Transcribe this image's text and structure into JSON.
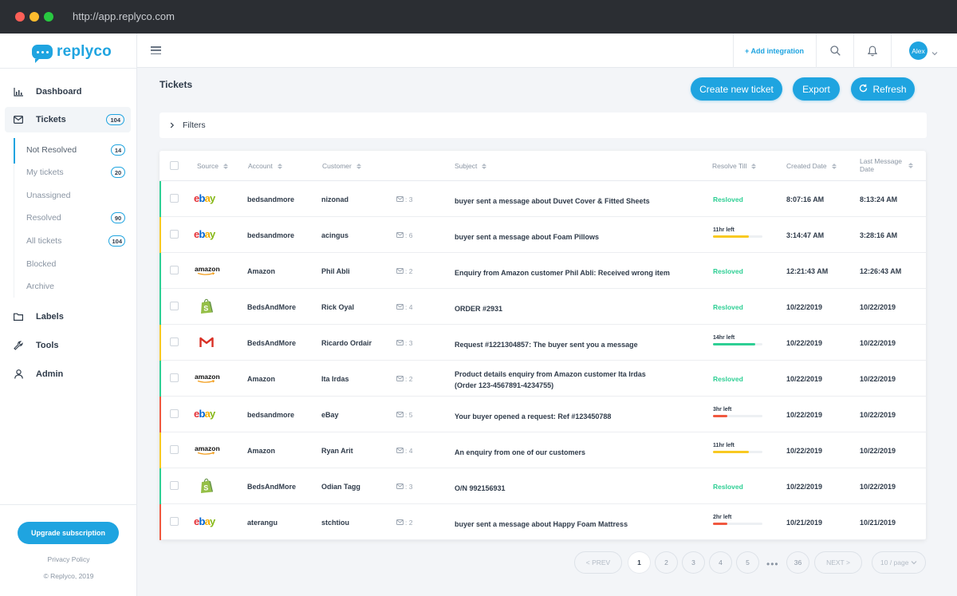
{
  "browser": {
    "url": "http://app.replyco.com"
  },
  "brand": {
    "name": "replyco",
    "color": "#1fa4e0"
  },
  "sidebar": {
    "items": [
      {
        "label": "Dashboard",
        "icon": "bar-chart-icon"
      },
      {
        "label": "Tickets",
        "icon": "envelope-icon",
        "badge": "104"
      },
      {
        "label": "Labels",
        "icon": "folder-icon"
      },
      {
        "label": "Tools",
        "icon": "wrench-icon"
      },
      {
        "label": "Admin",
        "icon": "user-icon"
      }
    ],
    "ticket_subitems": [
      {
        "label": "Not Resolved",
        "badge": "14"
      },
      {
        "label": "My tickets",
        "badge": "20"
      },
      {
        "label": "Unassigned"
      },
      {
        "label": "Resolved",
        "badge": "90"
      },
      {
        "label": "All tickets",
        "badge": "104"
      },
      {
        "label": "Blocked"
      },
      {
        "label": "Archive"
      }
    ],
    "upgrade_label": "Upgrade subscription",
    "privacy_label": "Privacy Policy",
    "copyright": "© Replyco, 2019"
  },
  "topbar": {
    "add_integration": "+ Add integration",
    "user_initials": "Alex"
  },
  "page": {
    "title": "Tickets",
    "create_label": "Create new ticket",
    "export_label": "Export",
    "refresh_label": "Refresh",
    "filters_label": "Filters"
  },
  "table": {
    "columns": {
      "source": "Source",
      "account": "Account",
      "customer": "Customer",
      "subject": "Subject",
      "resolve_till": "Resolve Till",
      "created_date": "Created Date",
      "last_message_1": "Last Message",
      "last_message_2": "Date"
    },
    "rows": [
      {
        "source": "ebay",
        "account": "bedsandmore",
        "customer": "nizonad",
        "messages": ": 3",
        "subject": "buyer sent a message about Duvet Cover & Fitted Sheets",
        "resolve": "Resloved",
        "created": "8:07:16 AM",
        "last": "8:13:24 AM",
        "stripe": "#2ecf94"
      },
      {
        "source": "ebay",
        "account": "bedsandmore",
        "customer": "acingus",
        "messages": ": 6",
        "subject": "buyer sent a message about Foam Pillows",
        "time_left": "11hr left",
        "progress": 0.73,
        "bar_color": "#f8c921",
        "created": "3:14:47 AM",
        "last": "3:28:16 AM",
        "stripe": "#f8c921"
      },
      {
        "source": "amazon",
        "account": "Amazon",
        "customer": "Phil Abli",
        "messages": ": 2",
        "subject": "Enquiry from Amazon customer Phil Abli: Received wrong item",
        "resolve": "Resloved",
        "created": "12:21:43 AM",
        "last": "12:26:43 AM",
        "stripe": "#2ecf94"
      },
      {
        "source": "shopify",
        "account": "BedsAndMore",
        "customer": "Rick Oyal",
        "messages": ": 4",
        "subject": "ORDER #2931",
        "resolve": "Resloved",
        "created": "10/22/2019",
        "last": "10/22/2019",
        "stripe": "#2ecf94"
      },
      {
        "source": "gmail",
        "account": "BedsAndMore",
        "customer": "Ricardo Ordair",
        "messages": ": 3",
        "subject": "Request #1221304857: The buyer sent you a message",
        "time_left": "14hr left",
        "progress": 0.86,
        "bar_color": "#2ecf94",
        "created": "10/22/2019",
        "last": "10/22/2019",
        "stripe": "#f8c921"
      },
      {
        "source": "amazon",
        "account": "Amazon",
        "customer": "Ita Irdas",
        "messages": ": 2",
        "subject": "Product details enquiry from Amazon customer Ita Irdas",
        "subject2": "(Order 123-4567891-4234755)",
        "resolve": "Resloved",
        "created": "10/22/2019",
        "last": "10/22/2019",
        "stripe": "#2ecf94"
      },
      {
        "source": "ebay",
        "account": "bedsandmore",
        "customer": "eBay",
        "messages": ": 5",
        "subject": "Your buyer opened a request: Ref #123450788",
        "time_left": "3hr left",
        "progress": 0.29,
        "bar_color": "#f0583f",
        "created": "10/22/2019",
        "last": "10/22/2019",
        "stripe": "#f0583f"
      },
      {
        "source": "amazon",
        "account": "Amazon",
        "customer": "Ryan Arit",
        "messages": ": 4",
        "subject": "An enquiry from one of our customers",
        "time_left": "11hr left",
        "progress": 0.73,
        "bar_color": "#f8c921",
        "created": "10/22/2019",
        "last": "10/22/2019",
        "stripe": "#f8c921"
      },
      {
        "source": "shopify",
        "account": "BedsAndMore",
        "customer": "Odian Tagg",
        "messages": ": 3",
        "subject": "O/N 992156931",
        "resolve": "Resloved",
        "created": "10/22/2019",
        "last": "10/22/2019",
        "stripe": "#2ecf94"
      },
      {
        "source": "ebay",
        "account": "aterangu",
        "customer": "stchtiou",
        "messages": ": 2",
        "subject": "buyer sent a message about Happy Foam Mattress",
        "time_left": "2hr left",
        "progress": 0.29,
        "bar_color": "#f0583f",
        "created": "10/21/2019",
        "last": "10/21/2019",
        "stripe": "#f0583f"
      }
    ]
  },
  "pagination": {
    "prev": "< PREV",
    "pages": [
      "1",
      "2",
      "3",
      "4",
      "5"
    ],
    "dots": "•••",
    "last": "36",
    "next": "NEXT >",
    "per_page": "10 / page"
  }
}
